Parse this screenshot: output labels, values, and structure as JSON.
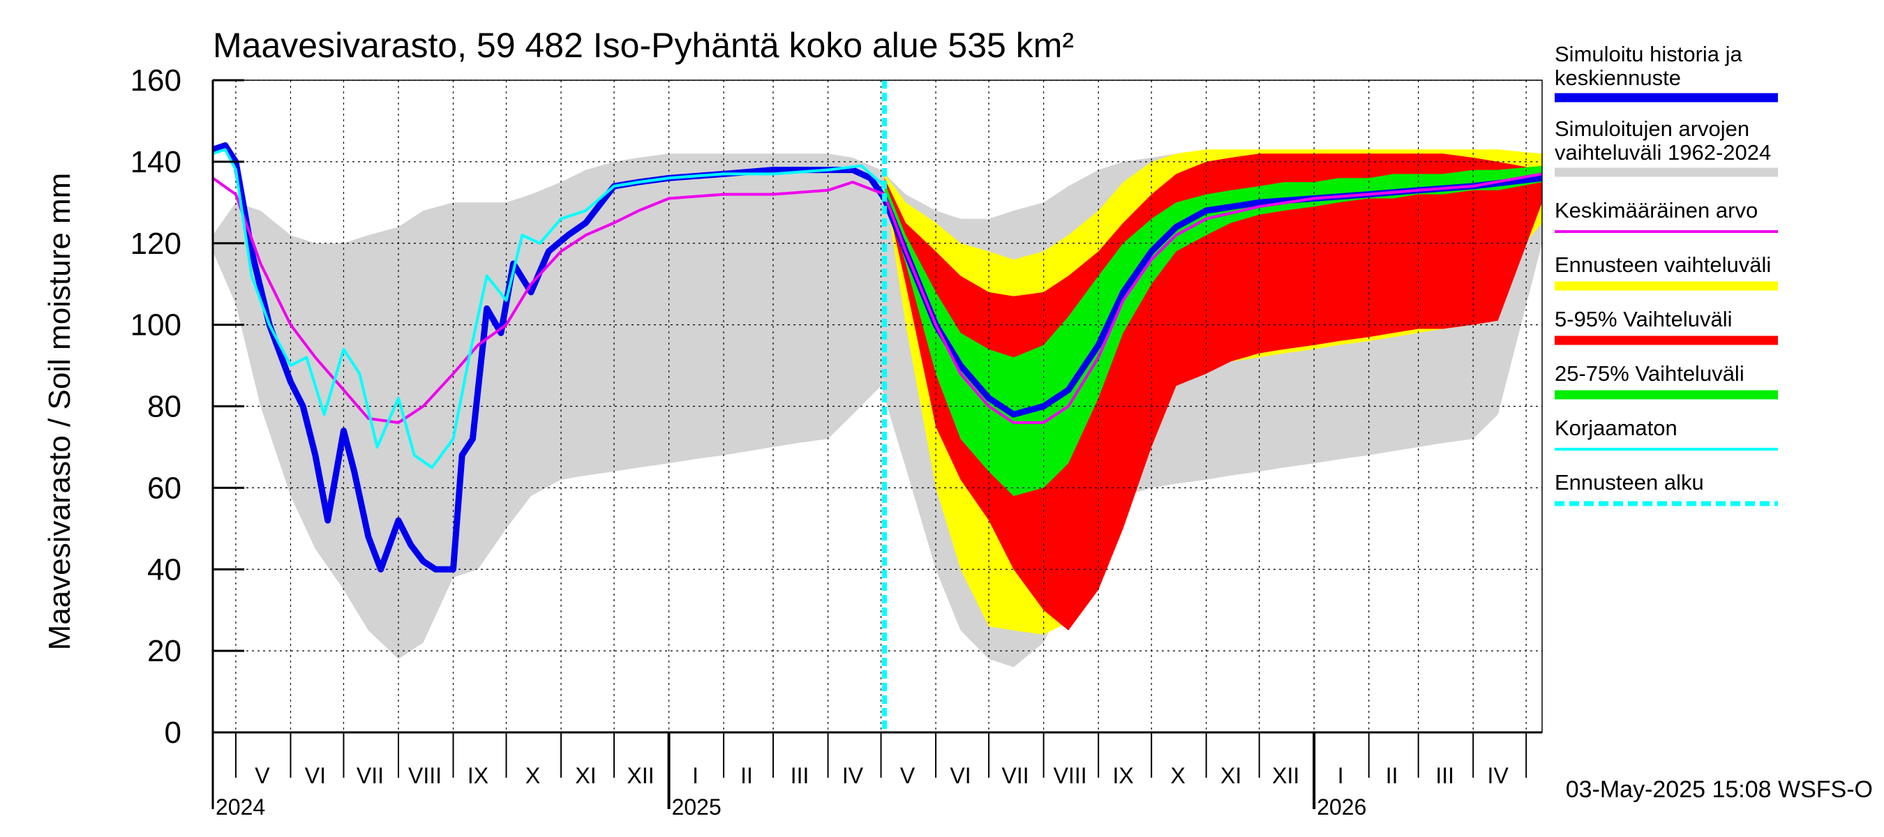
{
  "chart_data": {
    "type": "area",
    "title": "Maavesivarasto, 59 482 Iso-Pyhäntä koko alue 535 km²",
    "ylabel": "Maavesivarasto / Soil moisture   mm",
    "ylim": [
      0,
      160
    ],
    "yticks": [
      0,
      20,
      40,
      60,
      80,
      100,
      120,
      140,
      160
    ],
    "xlim": [
      "2024-04-18",
      "2026-05-10"
    ],
    "forecast_start": "2025-05-03",
    "footer": "03-May-2025 15:08 WSFS-O",
    "years": [
      {
        "label": "2024",
        "date": "2024-04-18"
      },
      {
        "label": "2025",
        "date": "2025-01-01"
      },
      {
        "label": "2026",
        "date": "2026-01-01"
      }
    ],
    "month_labels": [
      {
        "label": "V",
        "date": "2024-05-16"
      },
      {
        "label": "VI",
        "date": "2024-06-15"
      },
      {
        "label": "VII",
        "date": "2024-07-16"
      },
      {
        "label": "VIII",
        "date": "2024-08-16"
      },
      {
        "label": "IX",
        "date": "2024-09-15"
      },
      {
        "label": "X",
        "date": "2024-10-16"
      },
      {
        "label": "XI",
        "date": "2024-11-15"
      },
      {
        "label": "XII",
        "date": "2024-12-16"
      },
      {
        "label": "I",
        "date": "2025-01-16"
      },
      {
        "label": "II",
        "date": "2025-02-14"
      },
      {
        "label": "III",
        "date": "2025-03-16"
      },
      {
        "label": "IV",
        "date": "2025-04-15"
      },
      {
        "label": "V",
        "date": "2025-05-16"
      },
      {
        "label": "VI",
        "date": "2025-06-15"
      },
      {
        "label": "VII",
        "date": "2025-07-16"
      },
      {
        "label": "VIII",
        "date": "2025-08-16"
      },
      {
        "label": "IX",
        "date": "2025-09-15"
      },
      {
        "label": "X",
        "date": "2025-10-16"
      },
      {
        "label": "XI",
        "date": "2025-11-15"
      },
      {
        "label": "XII",
        "date": "2025-12-16"
      },
      {
        "label": "I",
        "date": "2026-01-16"
      },
      {
        "label": "II",
        "date": "2026-02-14"
      },
      {
        "label": "III",
        "date": "2026-03-16"
      },
      {
        "label": "IV",
        "date": "2026-04-15"
      }
    ],
    "legend": [
      {
        "label": "Simuloitu historia ja keskiennuste",
        "color": "#0000ee",
        "style": "thick"
      },
      {
        "label": "Simuloitujen arvojen vaihteluväli 1962-2024",
        "color": "#d3d3d3",
        "style": "thick"
      },
      {
        "label": "Keskimääräinen arvo",
        "color": "#ee00ee",
        "style": "line"
      },
      {
        "label": "Ennusteen vaihteluväli",
        "color": "#ffff00",
        "style": "thick"
      },
      {
        "label": "5-95% Vaihteluväli",
        "color": "#ff0000",
        "style": "thick"
      },
      {
        "label": "25-75% Vaihteluväli",
        "color": "#00ee00",
        "style": "thick"
      },
      {
        "label": "Korjaamaton",
        "color": "#00ffff",
        "style": "line"
      },
      {
        "label": "Ennusteen alku",
        "color": "#00ffff",
        "style": "dashed"
      }
    ],
    "series": [
      {
        "name": "Simuloitujen arvojen vaihteluväli 1962-2024",
        "kind": "band",
        "color": "#d3d3d3",
        "x": [
          "2024-04-18",
          "2024-05-01",
          "2024-05-15",
          "2024-06-01",
          "2024-06-15",
          "2024-07-01",
          "2024-07-15",
          "2024-08-01",
          "2024-08-15",
          "2024-09-01",
          "2024-09-15",
          "2024-10-01",
          "2024-10-15",
          "2024-11-01",
          "2024-11-15",
          "2024-12-01",
          "2024-12-15",
          "2025-01-01",
          "2025-01-15",
          "2025-02-01",
          "2025-02-15",
          "2025-03-01",
          "2025-03-15",
          "2025-04-01",
          "2025-04-15",
          "2025-05-01",
          "2025-05-15",
          "2025-06-01",
          "2025-06-15",
          "2025-07-01",
          "2025-07-15",
          "2025-08-01",
          "2025-08-15",
          "2025-09-01",
          "2025-09-15",
          "2025-10-01",
          "2025-10-15",
          "2025-11-01",
          "2025-11-15",
          "2025-12-01",
          "2025-12-15",
          "2026-01-01",
          "2026-01-15",
          "2026-02-01",
          "2026-02-15",
          "2026-03-01",
          "2026-03-15",
          "2026-04-01",
          "2026-04-15",
          "2026-05-10"
        ],
        "low": [
          118,
          105,
          80,
          58,
          45,
          35,
          25,
          18,
          22,
          38,
          40,
          50,
          58,
          62,
          63,
          64,
          65,
          66,
          67,
          68,
          69,
          70,
          71,
          72,
          78,
          85,
          65,
          40,
          25,
          18,
          16,
          22,
          35,
          50,
          58,
          60,
          61,
          62,
          63,
          64,
          65,
          66,
          67,
          68,
          69,
          70,
          71,
          72,
          78,
          120
        ],
        "high": [
          122,
          130,
          128,
          122,
          120,
          120,
          122,
          124,
          128,
          130,
          130,
          130,
          132,
          135,
          138,
          140,
          141,
          142,
          142,
          142,
          142,
          142,
          142,
          142,
          141,
          138,
          132,
          128,
          126,
          126,
          128,
          130,
          134,
          138,
          140,
          141,
          142,
          142,
          142,
          142,
          142,
          142,
          142,
          142,
          142,
          142,
          142,
          142,
          141,
          142
        ]
      },
      {
        "name": "Ennusteen vaihteluväli",
        "kind": "band",
        "color": "#ffff00",
        "x": [
          "2025-05-03",
          "2025-05-15",
          "2025-06-01",
          "2025-06-15",
          "2025-07-01",
          "2025-07-15",
          "2025-08-01",
          "2025-08-15",
          "2025-09-01",
          "2025-09-15",
          "2025-10-01",
          "2025-10-15",
          "2025-11-01",
          "2025-11-15",
          "2025-12-01",
          "2025-12-15",
          "2026-01-01",
          "2026-01-15",
          "2026-02-01",
          "2026-02-15",
          "2026-03-01",
          "2026-03-15",
          "2026-04-01",
          "2026-04-15",
          "2026-05-10"
        ],
        "low": [
          134,
          100,
          60,
          40,
          26,
          25,
          24,
          27,
          45,
          60,
          84,
          88,
          90,
          91,
          92,
          93,
          94,
          95,
          96,
          97,
          98,
          99,
          100,
          112,
          125
        ],
        "high": [
          137,
          130,
          125,
          120,
          118,
          116,
          118,
          122,
          128,
          135,
          140,
          142,
          143,
          143,
          143,
          143,
          143,
          143,
          143,
          143,
          143,
          143,
          143,
          143,
          142
        ]
      },
      {
        "name": "5-95% Vaihteluväli",
        "kind": "band",
        "color": "#ff0000",
        "x": [
          "2025-05-03",
          "2025-05-15",
          "2025-06-01",
          "2025-06-15",
          "2025-07-01",
          "2025-07-15",
          "2025-08-01",
          "2025-08-15",
          "2025-09-01",
          "2025-09-15",
          "2025-10-01",
          "2025-10-15",
          "2025-11-01",
          "2025-11-15",
          "2025-12-01",
          "2025-12-15",
          "2026-01-01",
          "2026-01-15",
          "2026-02-01",
          "2026-02-15",
          "2026-03-01",
          "2026-03-15",
          "2026-04-01",
          "2026-04-15",
          "2026-05-10"
        ],
        "low": [
          133,
          110,
          75,
          62,
          52,
          40,
          30,
          25,
          35,
          50,
          70,
          85,
          88,
          91,
          93,
          94,
          95,
          96,
          97,
          98,
          99,
          99,
          100,
          101,
          130
        ],
        "high": [
          136,
          125,
          118,
          112,
          108,
          107,
          108,
          112,
          118,
          125,
          132,
          137,
          140,
          141,
          142,
          142,
          142,
          142,
          142,
          142,
          142,
          142,
          141,
          140,
          138
        ]
      },
      {
        "name": "25-75% Vaihteluväli",
        "kind": "band",
        "color": "#00ee00",
        "x": [
          "2025-05-03",
          "2025-05-15",
          "2025-06-01",
          "2025-06-15",
          "2025-07-01",
          "2025-07-15",
          "2025-08-01",
          "2025-08-15",
          "2025-09-01",
          "2025-09-15",
          "2025-10-01",
          "2025-10-15",
          "2025-11-01",
          "2025-11-15",
          "2025-12-01",
          "2025-12-15",
          "2026-01-01",
          "2026-01-15",
          "2026-02-01",
          "2026-02-15",
          "2026-03-01",
          "2026-03-15",
          "2026-04-01",
          "2026-04-15",
          "2026-05-10"
        ],
        "low": [
          132,
          115,
          88,
          72,
          64,
          58,
          60,
          66,
          82,
          98,
          110,
          118,
          122,
          125,
          127,
          128,
          129,
          130,
          131,
          131,
          132,
          132,
          133,
          133,
          135
        ],
        "high": [
          135,
          122,
          108,
          98,
          94,
          92,
          95,
          102,
          112,
          120,
          126,
          130,
          132,
          133,
          134,
          135,
          135,
          136,
          136,
          137,
          137,
          137,
          138,
          138,
          139
        ]
      },
      {
        "name": "Simuloitu historia ja keskiennuste",
        "kind": "line",
        "color": "#0000ee",
        "width": 9,
        "x": [
          "2024-04-18",
          "2024-04-25",
          "2024-05-01",
          "2024-05-10",
          "2024-05-20",
          "2024-06-01",
          "2024-06-08",
          "2024-06-15",
          "2024-06-22",
          "2024-07-01",
          "2024-07-07",
          "2024-07-15",
          "2024-07-22",
          "2024-08-01",
          "2024-08-08",
          "2024-08-15",
          "2024-08-22",
          "2024-09-01",
          "2024-09-06",
          "2024-09-12",
          "2024-09-20",
          "2024-09-28",
          "2024-10-05",
          "2024-10-15",
          "2024-10-25",
          "2024-11-05",
          "2024-11-15",
          "2024-12-01",
          "2024-12-15",
          "2025-01-01",
          "2025-02-01",
          "2025-03-01",
          "2025-04-01",
          "2025-04-15",
          "2025-04-25",
          "2025-05-03",
          "2025-05-15",
          "2025-06-01",
          "2025-06-15",
          "2025-07-01",
          "2025-07-15",
          "2025-08-01",
          "2025-08-15",
          "2025-09-01",
          "2025-09-15",
          "2025-10-01",
          "2025-10-15",
          "2025-11-01",
          "2025-12-01",
          "2026-01-01",
          "2026-02-01",
          "2026-03-01",
          "2026-04-01",
          "2026-05-10"
        ],
        "y": [
          143,
          144,
          140,
          118,
          100,
          86,
          80,
          68,
          52,
          74,
          64,
          48,
          40,
          52,
          46,
          42,
          40,
          40,
          68,
          72,
          104,
          98,
          115,
          108,
          118,
          122,
          125,
          134,
          135,
          136,
          137,
          138,
          138,
          138,
          136,
          131,
          118,
          100,
          90,
          82,
          78,
          80,
          84,
          95,
          108,
          118,
          124,
          128,
          130,
          131,
          132,
          133,
          134,
          136
        ]
      },
      {
        "name": "Keskimääräinen arvo",
        "kind": "line",
        "color": "#ee00ee",
        "width": 4,
        "x": [
          "2024-04-18",
          "2024-05-01",
          "2024-05-15",
          "2024-06-01",
          "2024-06-15",
          "2024-07-01",
          "2024-07-15",
          "2024-08-01",
          "2024-08-15",
          "2024-09-01",
          "2024-09-15",
          "2024-10-01",
          "2024-10-15",
          "2024-11-01",
          "2024-11-15",
          "2024-12-01",
          "2024-12-15",
          "2025-01-01",
          "2025-02-01",
          "2025-03-01",
          "2025-04-01",
          "2025-04-15",
          "2025-05-03",
          "2025-05-15",
          "2025-06-01",
          "2025-06-15",
          "2025-07-01",
          "2025-07-15",
          "2025-08-01",
          "2025-08-15",
          "2025-09-01",
          "2025-09-15",
          "2025-10-01",
          "2025-10-15",
          "2025-11-01",
          "2025-12-01",
          "2026-01-01",
          "2026-02-01",
          "2026-03-01",
          "2026-04-01",
          "2026-05-10"
        ],
        "y": [
          136,
          132,
          115,
          100,
          92,
          84,
          77,
          76,
          80,
          88,
          95,
          100,
          110,
          118,
          122,
          125,
          128,
          131,
          132,
          132,
          133,
          135,
          132,
          118,
          100,
          88,
          80,
          76,
          76,
          80,
          92,
          106,
          116,
          122,
          126,
          129,
          131,
          132,
          133,
          134,
          137
        ]
      },
      {
        "name": "Korjaamaton",
        "kind": "line",
        "color": "#00ffff",
        "width": 4,
        "x": [
          "2024-04-18",
          "2024-04-25",
          "2024-05-01",
          "2024-05-10",
          "2024-05-20",
          "2024-06-01",
          "2024-06-10",
          "2024-06-20",
          "2024-07-01",
          "2024-07-10",
          "2024-07-20",
          "2024-08-01",
          "2024-08-10",
          "2024-08-20",
          "2024-09-01",
          "2024-09-10",
          "2024-09-20",
          "2024-10-01",
          "2024-10-10",
          "2024-10-20",
          "2024-11-01",
          "2024-11-15",
          "2024-12-01",
          "2024-12-15",
          "2025-01-01",
          "2025-02-01",
          "2025-03-01",
          "2025-04-01",
          "2025-04-20",
          "2025-05-03"
        ],
        "y": [
          142,
          143,
          138,
          112,
          100,
          90,
          92,
          78,
          94,
          88,
          70,
          82,
          68,
          65,
          72,
          92,
          112,
          106,
          122,
          120,
          126,
          128,
          134,
          135,
          136,
          137,
          137,
          138,
          139,
          134
        ]
      }
    ]
  }
}
